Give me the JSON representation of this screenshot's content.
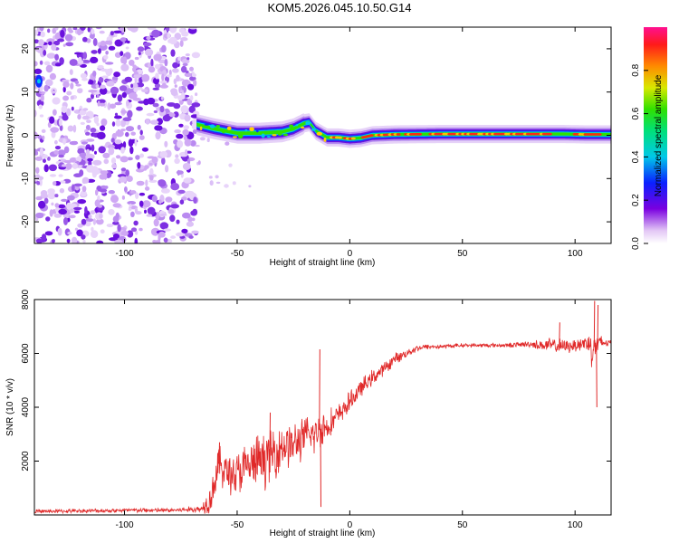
{
  "title": "KOM5.2026.045.10.50.G14",
  "colors": {
    "snr_line": "#e02828",
    "frame": "#000000"
  },
  "chart_data": [
    {
      "type": "heatmap",
      "name": "spectrogram",
      "xlabel": "Height of straight line (km)",
      "ylabel": "Frequency (Hz)",
      "xlim": [
        -140,
        116
      ],
      "ylim": [
        -25,
        25
      ],
      "xticks": [
        "-100",
        "-50",
        "0",
        "50",
        "100"
      ],
      "xtick_values": [
        -100,
        -50,
        0,
        50,
        100
      ],
      "yticks": [
        "-20",
        "-10",
        "0",
        "10",
        "20"
      ],
      "ytick_values": [
        -20,
        -10,
        0,
        10,
        20
      ],
      "ridge": {
        "description_points_x": [
          -68,
          -60,
          -50,
          -40,
          -30,
          -25,
          -20,
          -18,
          -15,
          -10,
          -5,
          0,
          5,
          10,
          20,
          40,
          60,
          80,
          95,
          105,
          115
        ],
        "frequency_hz": [
          2.5,
          1.5,
          0.5,
          0.5,
          0.8,
          1.5,
          2.8,
          3.0,
          1.0,
          -0.5,
          -0.5,
          -0.8,
          -0.6,
          0.0,
          0.2,
          0.3,
          0.3,
          0.3,
          0.3,
          0.2,
          0.2
        ]
      },
      "noise_region_x": [
        -140,
        -68
      ],
      "colorbar": {
        "label": "Normalized spectral amplitude",
        "ticks": [
          "0.0",
          "0.2",
          "0.4",
          "0.6",
          "0.8"
        ],
        "tick_values": [
          0.0,
          0.2,
          0.4,
          0.6,
          0.8
        ],
        "range": [
          0,
          1
        ]
      }
    },
    {
      "type": "line",
      "name": "snr",
      "xlabel": "Height of straight line (km)",
      "ylabel": "SNR (10 * v/v)",
      "xlim": [
        -140,
        116
      ],
      "ylim": [
        0,
        8000
      ],
      "xticks": [
        "-100",
        "-50",
        "0",
        "50",
        "100"
      ],
      "xtick_values": [
        -100,
        -50,
        0,
        50,
        100
      ],
      "yticks": [
        "2000",
        "4000",
        "6000",
        "8000"
      ],
      "ytick_values": [
        2000,
        4000,
        6000,
        8000
      ],
      "series": [
        {
          "name": "SNR",
          "x": [
            -140,
            -120,
            -100,
            -80,
            -66,
            -62,
            -58,
            -55,
            -50,
            -45,
            -40,
            -35,
            -30,
            -25,
            -20,
            -15,
            -13,
            -10,
            -5,
            0,
            5,
            10,
            15,
            20,
            25,
            30,
            35,
            40,
            50,
            60,
            70,
            80,
            85,
            90,
            95,
            100,
            105,
            108,
            110,
            113,
            116
          ],
          "y": [
            130,
            150,
            170,
            170,
            220,
            600,
            1900,
            1600,
            1500,
            1800,
            2000,
            2200,
            2600,
            2600,
            2900,
            3000,
            3200,
            3300,
            3700,
            4200,
            4700,
            5100,
            5400,
            5800,
            6000,
            6200,
            6250,
            6250,
            6300,
            6300,
            6300,
            6350,
            6300,
            6300,
            6250,
            6300,
            6400,
            6200,
            6350,
            6400,
            6400
          ],
          "spread": [
            80,
            90,
            100,
            100,
            150,
            700,
            900,
            900,
            1100,
            1100,
            1200,
            1200,
            1100,
            1000,
            900,
            900,
            900,
            700,
            500,
            450,
            400,
            350,
            300,
            250,
            200,
            150,
            120,
            100,
            90,
            90,
            100,
            150,
            250,
            350,
            300,
            300,
            450,
            900,
            500,
            250,
            150
          ],
          "spikes": [
            {
              "x": -13.5,
              "y": 6150
            },
            {
              "x": -13.0,
              "y": 300
            },
            {
              "x": -35.5,
              "y": 3800
            },
            {
              "x": -58.0,
              "y": 2700
            },
            {
              "x": 93.0,
              "y": 7150
            },
            {
              "x": 108.5,
              "y": 7950
            },
            {
              "x": 109.5,
              "y": 4000
            },
            {
              "x": 110.0,
              "y": 7800
            }
          ]
        }
      ]
    }
  ]
}
